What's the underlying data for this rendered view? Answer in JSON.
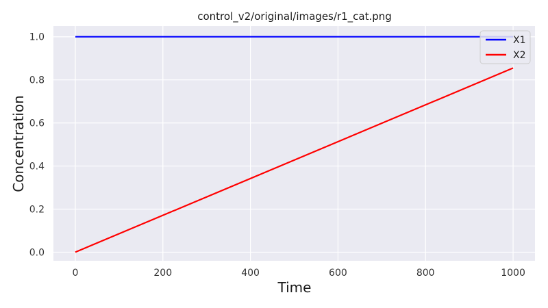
{
  "chart_data": {
    "type": "line",
    "title": "control_v2/original/images/r1_cat.png",
    "xlabel": "Time",
    "ylabel": "Concentration",
    "xlim": [
      -50,
      1050
    ],
    "ylim": [
      -0.04,
      1.05
    ],
    "xticks": [
      0,
      200,
      400,
      600,
      800,
      1000
    ],
    "xtick_labels": [
      "0",
      "200",
      "400",
      "600",
      "800",
      "1000"
    ],
    "yticks": [
      0.0,
      0.2,
      0.4,
      0.6,
      0.8,
      1.0
    ],
    "ytick_labels": [
      "0.0",
      "0.2",
      "0.4",
      "0.6",
      "0.8",
      "1.0"
    ],
    "grid": true,
    "legend_position": "top-right",
    "background_color": "#eaeaf2",
    "grid_color": "#ffffff",
    "series": [
      {
        "name": "X1",
        "color": "#0000ff",
        "x": [
          0,
          1000
        ],
        "values": [
          1.0,
          1.0
        ]
      },
      {
        "name": "X2",
        "color": "#ff0000",
        "x": [
          0,
          1000
        ],
        "values": [
          0.0,
          0.855
        ]
      }
    ]
  }
}
